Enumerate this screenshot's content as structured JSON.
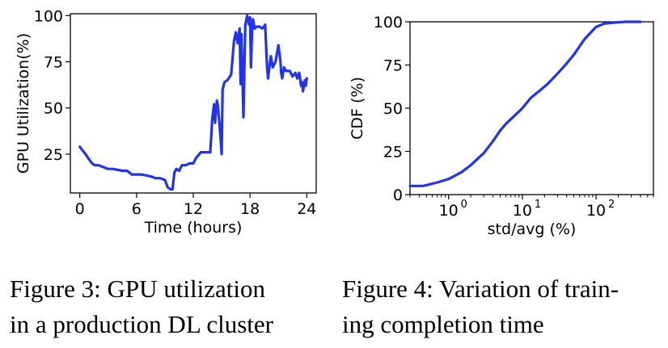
{
  "captions": {
    "left_line1": "Figure 3:   GPU  utilization",
    "left_line2": "in a production DL cluster",
    "right_line1": "Figure 4: Variation of train-",
    "right_line2": "ing completion time"
  },
  "chart_data": [
    {
      "type": "line",
      "title": "",
      "xlabel": "Time (hours)",
      "ylabel": "GPU Utilization(%)",
      "xlim": [
        -1,
        25
      ],
      "ylim": [
        4,
        101
      ],
      "x_ticks": [
        0,
        6,
        12,
        18,
        24
      ],
      "x_tick_labels": [
        "0",
        "6",
        "12",
        "18",
        "24"
      ],
      "y_ticks": [
        25,
        50,
        75,
        100
      ],
      "y_tick_labels": [
        "25",
        "50",
        "75",
        "100"
      ],
      "grid": false,
      "line_color": "#2233ee",
      "series": [
        {
          "x": [
            0,
            0.3,
            0.6,
            1.0,
            1.3,
            1.6,
            2.0,
            2.5,
            3.0,
            3.5,
            4.5,
            5.0,
            5.5,
            6.5,
            7.5,
            8.0,
            8.5,
            9.0,
            9.3,
            9.6,
            9.8,
            10.0,
            10.2,
            10.5,
            10.8,
            11.2,
            11.6,
            12.0,
            12.3,
            12.8,
            13.1,
            13.4,
            13.8,
            14.0,
            14.2,
            14.3,
            14.5,
            14.6,
            14.8,
            15.0,
            15.1,
            15.3,
            15.6,
            16.0,
            16.3,
            16.5,
            16.7,
            16.9,
            17.0,
            17.1,
            17.3,
            17.5,
            17.7,
            17.9,
            18.0,
            18.1,
            18.2,
            18.3,
            18.5,
            18.7,
            19.0,
            19.3,
            19.6,
            19.8,
            19.9,
            20.0,
            20.2,
            20.4,
            20.7,
            21.0,
            21.2,
            21.3,
            21.4,
            21.6,
            21.8,
            22.0,
            22.2,
            22.5,
            22.8,
            23.0,
            23.2,
            23.4,
            23.5,
            23.6,
            23.7,
            23.8,
            23.9,
            24.0
          ],
          "y": [
            29,
            27,
            25,
            22,
            20,
            19,
            19,
            18,
            17,
            17,
            16,
            16,
            14,
            14,
            13,
            12,
            12,
            11,
            7,
            6,
            6,
            15,
            17,
            16,
            19,
            19,
            20,
            20,
            23,
            26,
            26,
            26,
            26,
            44,
            52,
            42,
            54,
            51,
            40,
            25,
            60,
            64,
            65,
            68,
            86,
            91,
            85,
            93,
            63,
            90,
            45,
            95,
            100,
            95,
            99,
            72,
            90,
            98,
            93,
            94,
            94,
            93,
            95,
            72,
            66,
            70,
            78,
            72,
            75,
            84,
            76,
            69,
            66,
            72,
            70,
            70,
            70,
            67,
            69,
            66,
            69,
            62,
            64,
            59,
            62,
            65,
            62,
            66
          ]
        }
      ]
    },
    {
      "type": "line",
      "title": "",
      "xlabel": "std/avg (%)",
      "ylabel": "CDF (%)",
      "xscale": "log",
      "xlim": [
        0.3,
        600
      ],
      "ylim": [
        0,
        100
      ],
      "x_ticks": [
        1,
        10,
        100
      ],
      "x_tick_labels": [
        "10",
        "10",
        "10"
      ],
      "x_tick_exponents": [
        "0",
        "1",
        "2"
      ],
      "y_ticks": [
        0,
        25,
        50,
        75,
        100
      ],
      "y_tick_labels": [
        "0",
        "25",
        "50",
        "75",
        "100"
      ],
      "grid": false,
      "line_color": "#2233ee",
      "series": [
        {
          "x": [
            0.3,
            0.45,
            0.7,
            1.0,
            1.5,
            2.0,
            3.0,
            4.0,
            5.0,
            6.0,
            8.0,
            10,
            13,
            17,
            22,
            30,
            40,
            50,
            70,
            100,
            130,
            170,
            250,
            400
          ],
          "y": [
            5,
            5,
            7,
            9,
            13,
            17,
            24,
            31,
            37,
            41,
            46,
            50,
            56,
            60,
            64,
            70,
            76,
            81,
            90,
            97,
            99,
            99.5,
            100,
            100
          ]
        }
      ]
    }
  ]
}
